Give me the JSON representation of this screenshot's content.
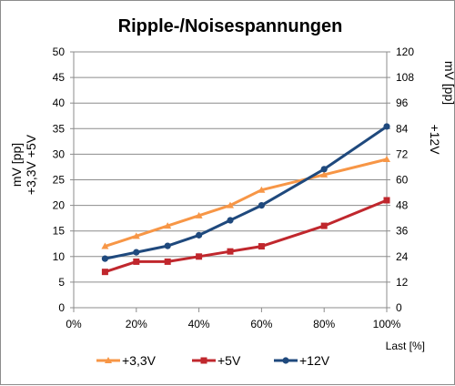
{
  "chart_data": {
    "type": "line",
    "title": "Ripple-/Noisespannungen",
    "xlabel": "Last [%]",
    "ylabel_left_lines": [
      "+3,3V +5V",
      "mV [pp]"
    ],
    "ylabel_right_lines": [
      "+12V",
      "mV [pp]"
    ],
    "x": [
      10,
      20,
      30,
      40,
      50,
      60,
      80,
      100
    ],
    "x_ticks": [
      0,
      20,
      40,
      60,
      80,
      100
    ],
    "x_tick_labels": [
      "0%",
      "20%",
      "40%",
      "60%",
      "80%",
      "100%"
    ],
    "xlim": [
      0,
      100
    ],
    "ylim_left": [
      0,
      50
    ],
    "y_ticks_left": [
      0,
      5,
      10,
      15,
      20,
      25,
      30,
      35,
      40,
      45,
      50
    ],
    "ylim_right": [
      0,
      120
    ],
    "y_ticks_right": [
      0,
      12,
      24,
      36,
      48,
      60,
      72,
      84,
      96,
      108,
      120
    ],
    "grid": "horizontal",
    "legend_position": "bottom",
    "series": [
      {
        "name": "+3,3V",
        "axis": "left",
        "color": "#f79646",
        "marker": "triangle",
        "values": [
          12,
          14,
          16,
          18,
          20,
          23,
          26,
          29
        ]
      },
      {
        "name": "+5V",
        "axis": "left",
        "color": "#c0272d",
        "marker": "square",
        "values": [
          7,
          9,
          9,
          10,
          11,
          12,
          16,
          21
        ]
      },
      {
        "name": "+12V",
        "axis": "right",
        "color": "#1f497d",
        "marker": "circle",
        "values": [
          23,
          26,
          29,
          34,
          41,
          48,
          65,
          85
        ]
      }
    ]
  }
}
